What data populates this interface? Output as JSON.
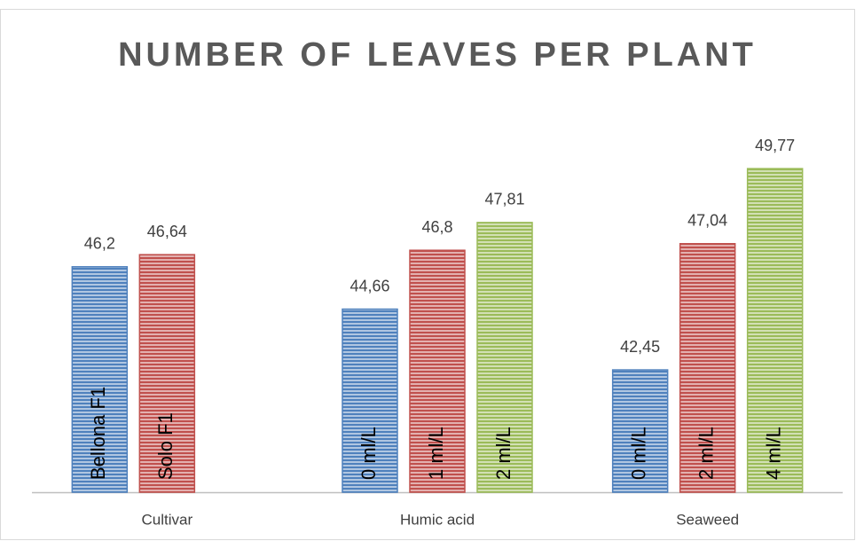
{
  "chart_data": {
    "type": "bar",
    "title": "NUMBER OF LEAVES PER PLANT",
    "ylim": [
      38,
      52
    ],
    "groups": [
      {
        "name": "Cultivar",
        "bars": [
          {
            "label": "Bellona F1",
            "value": 46.2,
            "value_label": "46,2",
            "color": "#4f81bd"
          },
          {
            "label": "Solo F1",
            "value": 46.64,
            "value_label": "46,64",
            "color": "#c0504d"
          }
        ]
      },
      {
        "name": "Humic acid",
        "bars": [
          {
            "label": "0 ml/L",
            "value": 44.66,
            "value_label": "44,66",
            "color": "#4f81bd"
          },
          {
            "label": "1 ml/L",
            "value": 46.8,
            "value_label": "46,8",
            "color": "#c0504d"
          },
          {
            "label": "2 ml/L",
            "value": 47.81,
            "value_label": "47,81",
            "color": "#9bbb59"
          }
        ]
      },
      {
        "name": "Seaweed",
        "bars": [
          {
            "label": "0 ml/L",
            "value": 42.45,
            "value_label": "42,45",
            "color": "#4f81bd"
          },
          {
            "label": "2 ml/L",
            "value": 47.04,
            "value_label": "47,04",
            "color": "#c0504d"
          },
          {
            "label": "4 ml/L",
            "value": 49.77,
            "value_label": "49,77",
            "color": "#9bbb59"
          }
        ]
      }
    ]
  }
}
